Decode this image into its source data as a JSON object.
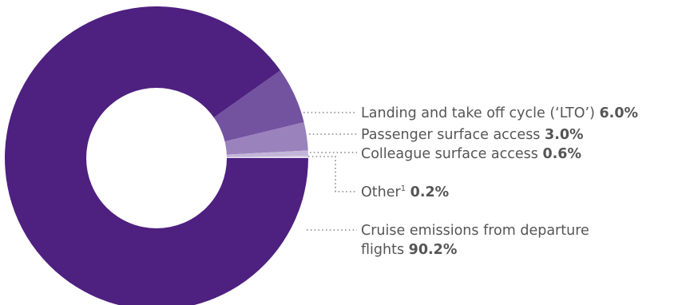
{
  "chart_data": {
    "type": "pie",
    "style": "donut",
    "title": "",
    "slices": [
      {
        "label": "Cruise emissions from departure flights",
        "value": 90.2,
        "value_label": "90.2%",
        "color": "#4e2080"
      },
      {
        "label": "Landing and take off cycle (‘LTO’)",
        "value": 6.0,
        "value_label": "6.0%",
        "color": "#7352a0"
      },
      {
        "label": "Passenger surface access",
        "value": 3.0,
        "value_label": "3.0%",
        "color": "#9a82bc"
      },
      {
        "label": "Colleague surface access",
        "value": 0.6,
        "value_label": "0.6%",
        "color": "#c3b5d8"
      },
      {
        "label": "Other",
        "footnote": "1",
        "value": 0.2,
        "value_label": "0.2%",
        "color": "#e3dcee"
      }
    ],
    "legend": "callouts-right"
  }
}
